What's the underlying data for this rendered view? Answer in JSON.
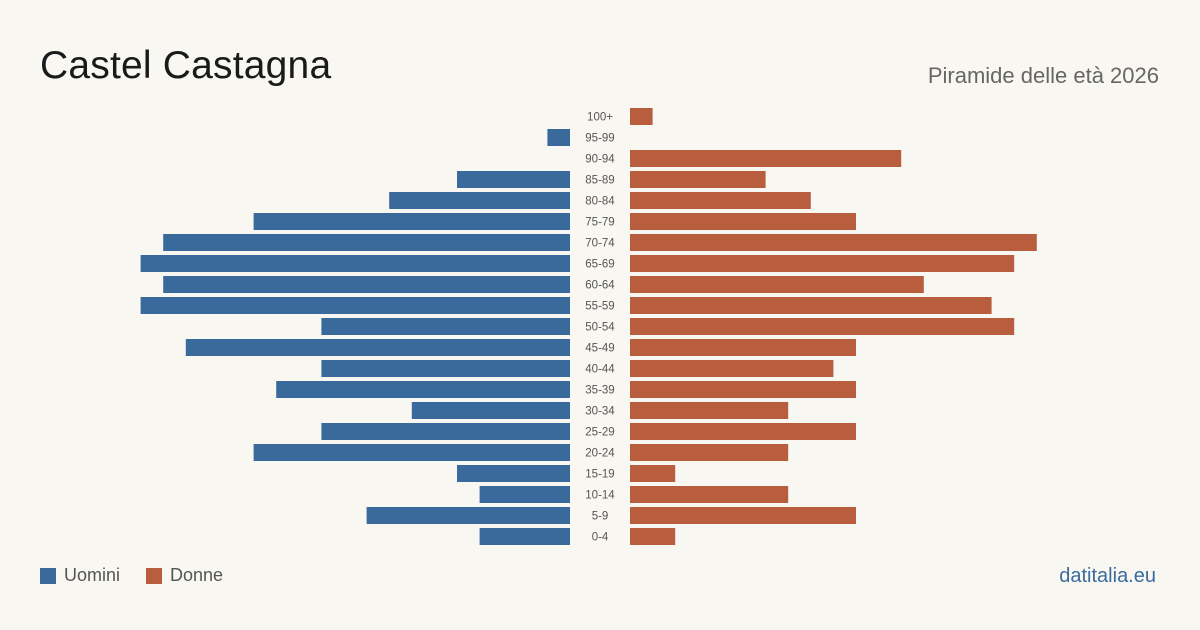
{
  "title": "Castel Castagna",
  "subtitle": "Piramide delle età 2026",
  "legend": {
    "men_label": "Uomini",
    "women_label": "Donne"
  },
  "source": "datitalia.eu",
  "colors": {
    "men": "#3a6a9c",
    "women": "#b85e3e",
    "background": "#f9f7f2"
  },
  "chart_data": {
    "type": "bar",
    "orientation": "horizontal-pyramid",
    "categories": [
      "100+",
      "95-99",
      "90-94",
      "85-89",
      "80-84",
      "75-79",
      "70-74",
      "65-69",
      "60-64",
      "55-59",
      "50-54",
      "45-49",
      "40-44",
      "35-39",
      "30-34",
      "25-29",
      "20-24",
      "15-19",
      "10-14",
      "5-9",
      "0-4"
    ],
    "series": [
      {
        "name": "Uomini",
        "values": [
          0,
          1,
          0,
          5,
          8,
          14,
          18,
          19,
          18,
          19,
          11,
          17,
          11,
          13,
          7,
          11,
          14,
          5,
          4,
          9,
          4
        ]
      },
      {
        "name": "Donne",
        "values": [
          1,
          0,
          12,
          6,
          8,
          10,
          18,
          17,
          13,
          16,
          17,
          10,
          9,
          10,
          7,
          10,
          7,
          2,
          7,
          10,
          2
        ]
      }
    ],
    "legend_position": "bottom-left",
    "grid": false
  }
}
